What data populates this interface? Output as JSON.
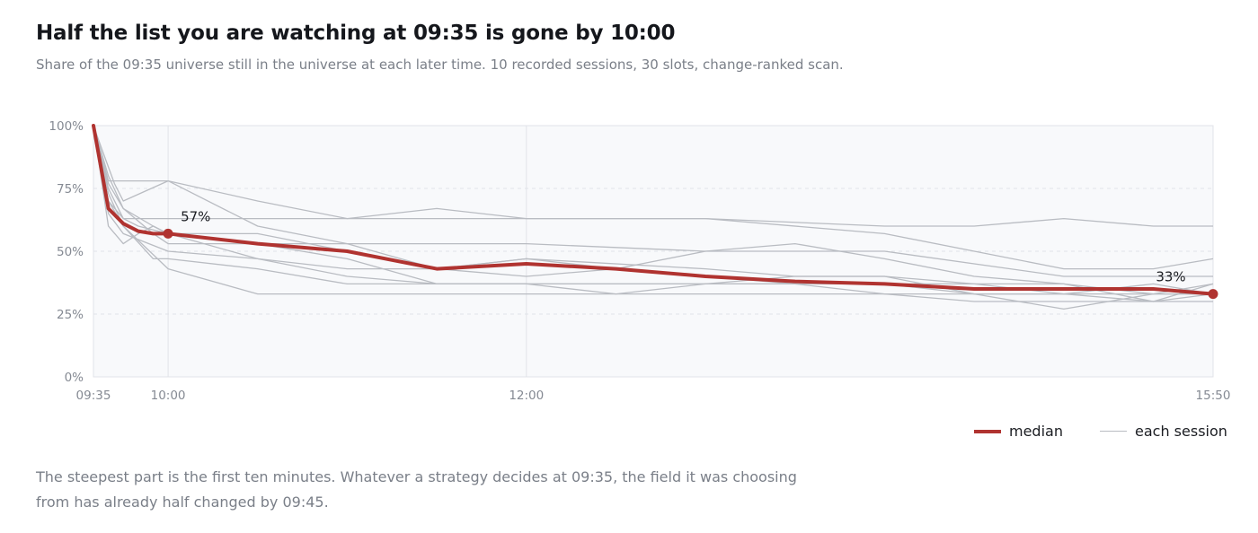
{
  "title": "Half the list you are watching at 09:35 is gone by 10:00",
  "subtitle": "Share of the 09:35 universe still in the universe at each later time. 10 recorded sessions, 30 slots, change-ranked scan.",
  "note": "The steepest part is the first ten minutes. Whatever a strategy decides at 09:35, the field it was choosing from has already half changed by 09:45.",
  "legend": {
    "median_label": "median",
    "session_label": "each session"
  },
  "colors": {
    "median": "#b03330",
    "session": "#b9bcc2",
    "grid": "#e1e3e8",
    "plot_bg": "#f8f9fb"
  },
  "chart_data": {
    "type": "line",
    "x_axis": {
      "min": "09:35",
      "max": "15:50",
      "ticks": [
        "09:35",
        "10:00",
        "12:00",
        "15:50"
      ]
    },
    "y_axis": {
      "min": 0,
      "max": 100,
      "ticks": [
        0,
        25,
        50,
        75,
        100
      ],
      "tick_labels": [
        "0%",
        "25%",
        "50%",
        "75%",
        "100%"
      ]
    },
    "vertical_gridlines_at": [
      "10:00",
      "12:00"
    ],
    "median": {
      "times": [
        "09:35",
        "09:40",
        "09:45",
        "09:50",
        "09:55",
        "10:00",
        "10:30",
        "11:00",
        "11:30",
        "12:00",
        "12:30",
        "13:00",
        "13:30",
        "14:00",
        "14:30",
        "15:00",
        "15:30",
        "15:50"
      ],
      "values": [
        100,
        67,
        61,
        58,
        57,
        57,
        53,
        50,
        43,
        45,
        43,
        40,
        38,
        37,
        35,
        35,
        35,
        33
      ],
      "annotations": [
        {
          "time": "10:00",
          "value": 57,
          "label": "57%"
        },
        {
          "time": "15:50",
          "value": 33,
          "label": "33%"
        }
      ]
    },
    "sessions": [
      {
        "times": [
          "09:35",
          "09:40",
          "09:45",
          "10:00",
          "10:30",
          "11:00",
          "11:30",
          "12:00",
          "13:00",
          "14:00",
          "14:30",
          "15:00",
          "15:30",
          "15:50"
        ],
        "values": [
          100,
          78,
          78,
          78,
          70,
          63,
          67,
          63,
          63,
          60,
          60,
          63,
          60,
          60
        ]
      },
      {
        "times": [
          "09:35",
          "09:40",
          "09:45",
          "09:55",
          "10:00",
          "10:30",
          "11:00",
          "12:00",
          "13:00",
          "14:00",
          "15:00",
          "15:30",
          "15:50"
        ],
        "values": [
          100,
          70,
          63,
          63,
          63,
          63,
          63,
          63,
          63,
          57,
          43,
          43,
          47
        ]
      },
      {
        "times": [
          "09:35",
          "09:38",
          "09:42",
          "09:45",
          "10:00",
          "10:30",
          "11:00",
          "11:30",
          "12:00",
          "12:30",
          "13:00",
          "13:30",
          "14:00",
          "14:30",
          "15:00",
          "15:30",
          "15:50"
        ],
        "values": [
          100,
          90,
          77,
          70,
          78,
          60,
          53,
          43,
          40,
          43,
          50,
          53,
          47,
          40,
          37,
          30,
          37
        ]
      },
      {
        "times": [
          "09:35",
          "09:40",
          "09:45",
          "09:55",
          "10:00",
          "11:00",
          "12:00",
          "13:00",
          "14:00",
          "15:00",
          "15:30",
          "15:50"
        ],
        "values": [
          100,
          77,
          67,
          57,
          53,
          53,
          53,
          50,
          50,
          40,
          40,
          40
        ]
      },
      {
        "times": [
          "09:35",
          "09:40",
          "09:45",
          "09:50",
          "09:55",
          "10:00",
          "10:30",
          "11:00",
          "11:30",
          "12:00",
          "12:30",
          "13:00",
          "13:30",
          "14:00",
          "14:30",
          "15:00",
          "15:30",
          "15:50"
        ],
        "values": [
          100,
          60,
          53,
          57,
          60,
          57,
          53,
          47,
          37,
          37,
          37,
          37,
          40,
          40,
          37,
          37,
          33,
          33
        ]
      },
      {
        "times": [
          "09:35",
          "09:40",
          "09:45",
          "10:00",
          "10:30",
          "11:00",
          "11:30",
          "12:00",
          "12:30",
          "13:00",
          "13:30",
          "14:00",
          "14:30",
          "15:00",
          "15:30",
          "15:50"
        ],
        "values": [
          100,
          65,
          57,
          50,
          47,
          40,
          37,
          37,
          33,
          37,
          37,
          33,
          33,
          33,
          37,
          33
        ]
      },
      {
        "times": [
          "09:35",
          "09:40",
          "09:45",
          "09:55",
          "10:00",
          "10:30",
          "11:00",
          "11:30",
          "12:00",
          "13:00",
          "14:00",
          "14:30",
          "15:00",
          "15:30",
          "15:50"
        ],
        "values": [
          100,
          73,
          60,
          47,
          47,
          43,
          37,
          37,
          37,
          37,
          37,
          33,
          33,
          30,
          33
        ]
      },
      {
        "times": [
          "09:35",
          "09:40",
          "09:45",
          "09:50",
          "10:00",
          "10:30",
          "11:00",
          "11:30",
          "12:00",
          "13:00",
          "13:30",
          "14:00",
          "14:30",
          "15:00",
          "15:30",
          "15:50"
        ],
        "values": [
          100,
          75,
          63,
          60,
          57,
          47,
          43,
          43,
          47,
          43,
          40,
          40,
          33,
          27,
          33,
          33
        ]
      },
      {
        "times": [
          "09:35",
          "09:40",
          "09:45",
          "10:00",
          "10:30",
          "11:00",
          "12:00",
          "13:00",
          "14:00",
          "14:30",
          "15:00",
          "15:30",
          "15:50"
        ],
        "values": [
          100,
          70,
          60,
          43,
          33,
          33,
          33,
          33,
          33,
          30,
          30,
          30,
          30
        ]
      },
      {
        "times": [
          "09:35",
          "09:40",
          "09:45",
          "09:55",
          "10:00",
          "10:30",
          "11:00",
          "11:30",
          "12:00",
          "12:30",
          "13:00",
          "13:30",
          "14:00",
          "14:30",
          "15:00",
          "15:30",
          "15:50"
        ],
        "values": [
          100,
          80,
          67,
          60,
          57,
          57,
          50,
          43,
          47,
          43,
          40,
          37,
          37,
          37,
          33,
          33,
          37
        ]
      }
    ]
  }
}
